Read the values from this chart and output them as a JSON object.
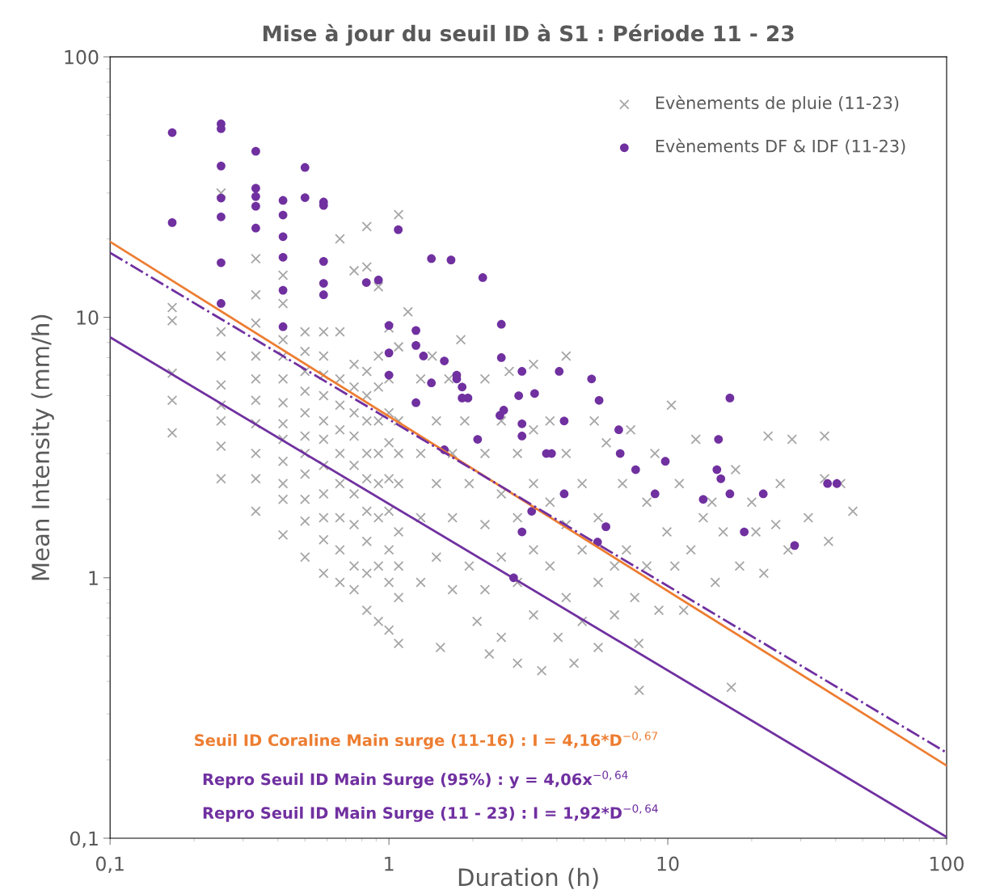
{
  "chart_data": {
    "type": "scatter",
    "title": "Mise à jour du seuil ID à S1 : Période 11 - 23",
    "xlabel": "Duration (h)",
    "ylabel": "Mean Intensity (mm/h)",
    "log": "xy",
    "xlim": [
      0.1,
      100
    ],
    "ylim": [
      0.1,
      100
    ],
    "xticks": [
      {
        "value": 0.1,
        "label": "0,1"
      },
      1,
      10,
      100
    ],
    "yticks": [
      {
        "value": 0.1,
        "label": "0,1"
      },
      1,
      10,
      100
    ],
    "grid": false,
    "legend": "top right",
    "series": [
      {
        "name": "Evènements de pluie (11-23)",
        "marker": "cross",
        "color": "#a6a6a6",
        "x": [
          0.167,
          0.167,
          0.167,
          0.167,
          0.167,
          0.25,
          0.25,
          0.25,
          0.25,
          0.25,
          0.25,
          0.25,
          0.25,
          0.333,
          0.333,
          0.333,
          0.333,
          0.333,
          0.333,
          0.333,
          0.333,
          0.333,
          0.333,
          0.417,
          0.417,
          0.417,
          0.417,
          0.417,
          0.417,
          0.417,
          0.417,
          0.417,
          0.417,
          0.417,
          0.417,
          0.5,
          0.5,
          0.5,
          0.5,
          0.5,
          0.5,
          0.5,
          0.5,
          0.5,
          0.5,
          0.5,
          0.583,
          0.583,
          0.583,
          0.583,
          0.583,
          0.583,
          0.583,
          0.583,
          0.583,
          0.583,
          0.583,
          0.667,
          0.667,
          0.667,
          0.667,
          0.667,
          0.667,
          0.667,
          0.667,
          0.667,
          0.667,
          0.75,
          0.75,
          0.75,
          0.75,
          0.75,
          0.75,
          0.75,
          0.75,
          0.75,
          0.75,
          0.833,
          0.833,
          0.833,
          0.833,
          0.833,
          0.833,
          0.833,
          0.833,
          0.833,
          0.833,
          0.833,
          0.917,
          0.917,
          0.917,
          0.917,
          0.917,
          0.917,
          0.917,
          0.917,
          0.917,
          1.0,
          1.0,
          1.0,
          1.0,
          1.0,
          1.0,
          1.0,
          1.0,
          1.0,
          1.083,
          1.083,
          1.083,
          1.083,
          1.083,
          1.083,
          1.083,
          1.083,
          1.083,
          1.17,
          1.3,
          1.3,
          1.3,
          1.3,
          1.43,
          1.48,
          1.48,
          1.48,
          1.53,
          1.64,
          1.69,
          1.69,
          1.69,
          1.81,
          1.87,
          1.94,
          1.94,
          2.07,
          2.21,
          2.21,
          2.21,
          2.21,
          2.29,
          2.53,
          2.53,
          2.53,
          2.53,
          2.7,
          2.89,
          2.89,
          2.89,
          2.89,
          3.3,
          3.3,
          3.3,
          3.3,
          3.3,
          3.53,
          3.78,
          3.78,
          3.78,
          4.04,
          4.32,
          4.32,
          4.32,
          4.32,
          4.61,
          4.93,
          4.93,
          4.93,
          5.45,
          5.63,
          5.63,
          5.63,
          6.02,
          6.44,
          6.44,
          6.88,
          7.11,
          7.36,
          7.61,
          7.87,
          7.9,
          8.41,
          8.41,
          8.99,
          9.29,
          9.93,
          10.3,
          10.6,
          11.0,
          11.4,
          12.1,
          12.6,
          13.4,
          14.4,
          14.8,
          15.8,
          16.9,
          17.5,
          18.1,
          20.0,
          20.7,
          22.1,
          22.9,
          24.4,
          25.3,
          27.0,
          27.9,
          31.9,
          36.5,
          36.5,
          37.7,
          41.7,
          46.1
        ],
        "values": [
          10.9,
          9.7,
          6.1,
          4.8,
          3.6,
          30,
          8.8,
          7.1,
          5.5,
          4.6,
          4.0,
          3.2,
          2.4,
          16.8,
          12.2,
          9.5,
          7.1,
          5.8,
          4.8,
          3.9,
          3.0,
          2.4,
          1.8,
          14.5,
          11.3,
          8.2,
          7.1,
          5.8,
          4.7,
          3.9,
          3.4,
          2.8,
          2.3,
          2.0,
          1.46,
          8.8,
          7.4,
          6.2,
          5.2,
          4.3,
          3.5,
          3.0,
          2.5,
          2.0,
          1.65,
          1.2,
          8.8,
          7.1,
          6.0,
          5.0,
          4.0,
          3.4,
          2.7,
          2.1,
          1.7,
          1.4,
          1.04,
          20.0,
          8.8,
          5.8,
          4.6,
          3.7,
          3.0,
          2.3,
          1.7,
          1.28,
          0.96,
          15.1,
          6.6,
          5.4,
          4.3,
          3.5,
          2.7,
          2.1,
          1.6,
          1.11,
          0.9,
          22.3,
          15.6,
          6.2,
          5.0,
          4.0,
          3.0,
          2.4,
          1.8,
          1.38,
          1.04,
          0.75,
          13.1,
          7.1,
          5.4,
          4.0,
          3.0,
          2.3,
          1.7,
          1.11,
          0.68,
          9.1,
          5.8,
          4.3,
          3.3,
          2.4,
          1.8,
          1.28,
          0.96,
          0.63,
          24.8,
          7.7,
          4.0,
          3.0,
          2.3,
          1.5,
          1.11,
          0.84,
          0.56,
          10.5,
          5.8,
          3.0,
          1.7,
          0.96,
          7.1,
          4.0,
          2.3,
          1.2,
          0.54,
          5.8,
          3.0,
          1.7,
          0.9,
          8.2,
          4.0,
          2.3,
          1.11,
          0.68,
          5.8,
          3.0,
          1.6,
          0.9,
          0.51,
          4.0,
          2.1,
          1.2,
          0.59,
          6.2,
          3.0,
          1.7,
          0.96,
          0.47,
          6.6,
          3.7,
          2.3,
          1.28,
          0.72,
          0.44,
          4.0,
          1.95,
          1.11,
          0.59,
          7.1,
          3.0,
          1.6,
          0.84,
          0.47,
          2.3,
          1.28,
          0.68,
          4.0,
          1.7,
          0.96,
          0.54,
          3.3,
          1.11,
          0.72,
          2.3,
          1.28,
          3.7,
          0.84,
          0.56,
          0.37,
          1.95,
          1.11,
          3.0,
          0.75,
          1.5,
          4.6,
          1.11,
          2.3,
          0.75,
          1.28,
          3.4,
          1.7,
          1.95,
          0.96,
          1.5,
          0.38,
          2.6,
          1.11,
          1.95,
          1.5,
          1.04,
          3.5,
          1.6,
          2.3,
          1.28,
          3.4,
          1.7,
          3.5,
          2.4,
          1.38,
          2.3,
          1.8
        ]
      },
      {
        "name": "Evènements DF & IDF (11-23)",
        "marker": "circle",
        "color": "#7030a0",
        "x": [
          0.167,
          0.167,
          0.25,
          0.25,
          0.25,
          0.25,
          0.25,
          0.25,
          0.25,
          0.333,
          0.333,
          0.333,
          0.333,
          0.333,
          0.417,
          0.417,
          0.417,
          0.417,
          0.417,
          0.417,
          0.5,
          0.5,
          0.583,
          0.583,
          0.583,
          0.583,
          0.583,
          0.83,
          0.917,
          1.0,
          1.0,
          1.0,
          1.08,
          1.25,
          1.25,
          1.25,
          1.33,
          1.42,
          1.42,
          1.58,
          1.67,
          1.58,
          1.75,
          1.75,
          1.83,
          1.83,
          1.92,
          2.08,
          2.17,
          2.5,
          2.58,
          2.53,
          2.53,
          3.0,
          3.0,
          3.0,
          3.0,
          2.92,
          3.25,
          3.33,
          3.67,
          3.83,
          4.08,
          4.25,
          4.25,
          5.33,
          5.67,
          6.0,
          5.6,
          6.67,
          6.75,
          7.67,
          9.0,
          9.8,
          13.4,
          15.0,
          15.2,
          15.5,
          16.7,
          16.7,
          18.8,
          22.0,
          28.5,
          37.4,
          40.4,
          2.8
        ],
        "values": [
          51.2,
          23.1,
          55.3,
          53.0,
          38.1,
          28.7,
          24.3,
          16.2,
          11.3,
          43.4,
          31.3,
          29.1,
          26.7,
          22.0,
          28.1,
          24.7,
          20.4,
          17.0,
          12.7,
          9.2,
          37.6,
          28.8,
          27.7,
          26.9,
          16.4,
          13.5,
          12.2,
          13.6,
          13.9,
          9.3,
          7.3,
          6.0,
          21.7,
          8.9,
          7.8,
          4.7,
          7.1,
          16.8,
          5.6,
          3.1,
          16.6,
          6.8,
          5.8,
          6.0,
          5.4,
          4.9,
          4.9,
          3.4,
          14.2,
          4.2,
          4.4,
          9.4,
          7.0,
          6.2,
          3.9,
          3.5,
          1.5,
          5.0,
          1.8,
          5.1,
          3.0,
          3.0,
          6.2,
          2.1,
          4.0,
          5.8,
          4.8,
          1.57,
          1.37,
          3.7,
          3.0,
          2.6,
          2.1,
          2.8,
          2.0,
          2.6,
          3.4,
          2.4,
          2.1,
          4.9,
          1.5,
          2.1,
          1.33,
          2.3,
          2.3,
          1.0
        ]
      },
      {
        "type": "line",
        "color": "#ed7d31",
        "line_style": "solid",
        "x": [
          0.1,
          100
        ],
        "values": [
          19.5,
          0.19
        ]
      },
      {
        "type": "line",
        "color": "#7030a0",
        "line_style": "dashdot",
        "x": [
          0.1,
          100
        ],
        "values": [
          17.7,
          0.213
        ]
      },
      {
        "type": "line",
        "color": "#7030a0",
        "line_style": "solid",
        "x": [
          0.1,
          100
        ],
        "values": [
          8.38,
          0.101
        ]
      }
    ],
    "annotations": [
      "Seuil ID Coraline Main surge (11-16) : I = 4,16*D$^{−0,67}$",
      "Repro Seuil ID Main Surge (95%) : y = 4,06x$^{−0,64}$",
      "Repro Seuil ID Main Surge (11 - 23) : I = 1,92*D$^{−0,64}$"
    ]
  }
}
